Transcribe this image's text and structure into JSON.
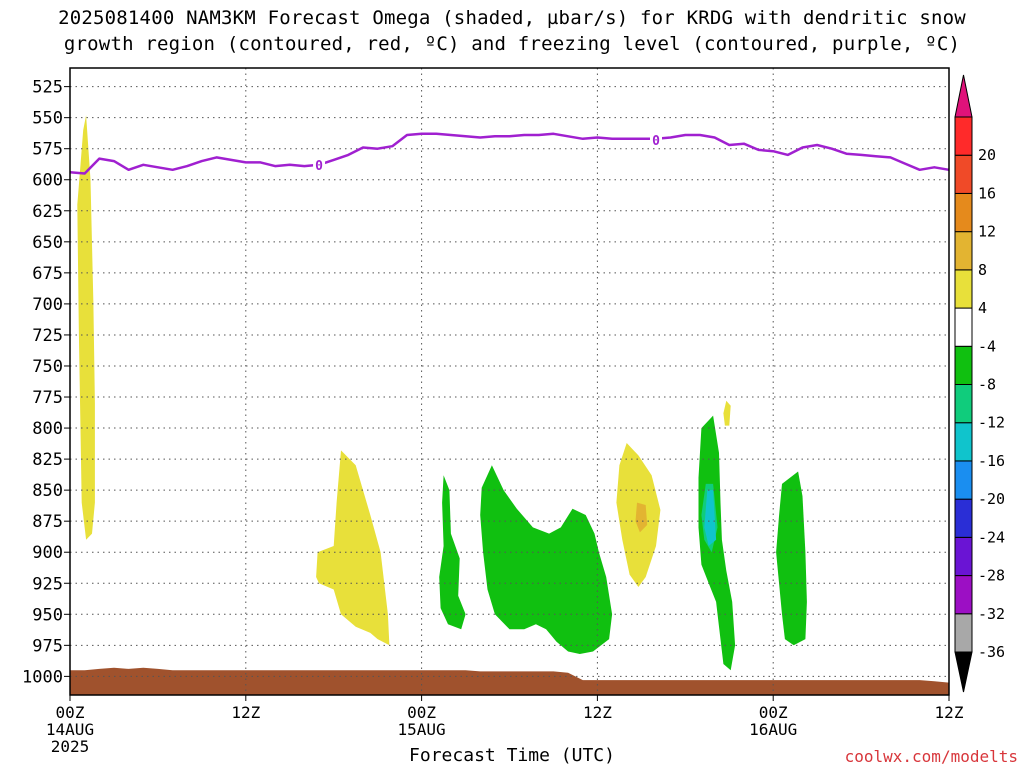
{
  "title": {
    "line1": "2025081400 NAM3KM Forecast Omega (shaded, µbar/s) for KRDG with dendritic snow",
    "line2": "growth region (contoured, red, ºC) and freezing level (contoured, purple, ºC)"
  },
  "xlabel": "Forecast Time (UTC)",
  "credit": "coolwx.com/modelts",
  "chart_data": {
    "type": "time-height contour",
    "y_axis": {
      "ticks": [
        525,
        550,
        575,
        600,
        625,
        650,
        675,
        700,
        725,
        750,
        775,
        800,
        825,
        850,
        875,
        900,
        925,
        950,
        975,
        1000
      ],
      "range": [
        1015,
        510
      ],
      "label": ""
    },
    "x_axis": {
      "range": [
        0,
        60
      ],
      "ticks": [
        {
          "h": 0,
          "line1": "00Z",
          "line2": "14AUG",
          "line3": "2025"
        },
        {
          "h": 12,
          "line1": "12Z",
          "line2": "",
          "line3": ""
        },
        {
          "h": 24,
          "line1": "00Z",
          "line2": "15AUG",
          "line3": ""
        },
        {
          "h": 36,
          "line1": "12Z",
          "line2": "",
          "line3": ""
        },
        {
          "h": 48,
          "line1": "00Z",
          "line2": "16AUG",
          "line3": ""
        },
        {
          "h": 60,
          "line1": "12Z",
          "line2": "",
          "line3": ""
        }
      ]
    },
    "grid": true,
    "colorbar": {
      "colors": [
        "#000000",
        "#a8a8a8",
        "#9c0fc4",
        "#6a14d4",
        "#2a2ed6",
        "#1a8ef0",
        "#10c4cc",
        "#10cc7c",
        "#10c010",
        "#ffffff",
        "#e8e03a",
        "#e3b431",
        "#e58a1c",
        "#f04a28",
        "#ff2a2a",
        "#e0127a"
      ],
      "labels": [
        "-36",
        "-32",
        "-28",
        "-24",
        "-20",
        "-16",
        "-12",
        "-8",
        "-4",
        "4",
        "8",
        "12",
        "16",
        "20"
      ]
    },
    "freezing_level": {
      "label": "0",
      "label_points": [
        [
          17,
          588
        ],
        [
          40,
          568
        ]
      ],
      "points": [
        [
          0,
          594
        ],
        [
          1,
          595
        ],
        [
          2,
          583
        ],
        [
          3,
          585
        ],
        [
          4,
          592
        ],
        [
          5,
          588
        ],
        [
          6,
          590
        ],
        [
          7,
          592
        ],
        [
          8,
          589
        ],
        [
          9,
          585
        ],
        [
          10,
          582
        ],
        [
          11,
          584
        ],
        [
          12,
          586
        ],
        [
          13,
          586
        ],
        [
          14,
          589
        ],
        [
          15,
          588
        ],
        [
          16,
          589
        ],
        [
          17,
          588
        ],
        [
          18,
          584
        ],
        [
          19,
          580
        ],
        [
          20,
          574
        ],
        [
          21,
          575
        ],
        [
          22,
          573
        ],
        [
          23,
          564
        ],
        [
          24,
          563
        ],
        [
          25,
          563
        ],
        [
          26,
          564
        ],
        [
          27,
          565
        ],
        [
          28,
          566
        ],
        [
          29,
          565
        ],
        [
          30,
          565
        ],
        [
          31,
          564
        ],
        [
          32,
          564
        ],
        [
          33,
          563
        ],
        [
          34,
          565
        ],
        [
          35,
          567
        ],
        [
          36,
          566
        ],
        [
          37,
          567
        ],
        [
          38,
          567
        ],
        [
          39,
          567
        ],
        [
          40,
          567
        ],
        [
          41,
          566
        ],
        [
          42,
          564
        ],
        [
          43,
          564
        ],
        [
          44,
          566
        ],
        [
          45,
          572
        ],
        [
          46,
          571
        ],
        [
          47,
          576
        ],
        [
          48,
          577
        ],
        [
          49,
          580
        ],
        [
          50,
          574
        ],
        [
          51,
          572
        ],
        [
          52,
          575
        ],
        [
          53,
          579
        ],
        [
          54,
          580
        ],
        [
          55,
          581
        ],
        [
          56,
          582
        ],
        [
          57,
          587
        ],
        [
          58,
          592
        ],
        [
          59,
          590
        ],
        [
          60,
          592
        ]
      ]
    },
    "omega_regions": [
      {
        "value": "4 to 8",
        "color": "#e8e03a",
        "points": [
          [
            0.7,
            590
          ],
          [
            0.9,
            560
          ],
          [
            1.1,
            548
          ],
          [
            1.4,
            600
          ],
          [
            1.6,
            700
          ],
          [
            1.7,
            780
          ],
          [
            1.7,
            860
          ],
          [
            1.5,
            885
          ],
          [
            1.1,
            890
          ],
          [
            0.8,
            860
          ],
          [
            0.6,
            720
          ],
          [
            0.5,
            620
          ]
        ]
      },
      {
        "value": "4 to 8",
        "color": "#e8e03a",
        "points": [
          [
            18.5,
            818
          ],
          [
            19.5,
            830
          ],
          [
            20.5,
            870
          ],
          [
            21.2,
            900
          ],
          [
            21.7,
            950
          ],
          [
            21.8,
            975
          ],
          [
            21.0,
            970
          ],
          [
            20.5,
            965
          ],
          [
            19.5,
            960
          ],
          [
            18.5,
            950
          ],
          [
            18.0,
            930
          ],
          [
            17.0,
            925
          ],
          [
            16.8,
            920
          ],
          [
            16.9,
            900
          ],
          [
            18.0,
            895
          ],
          [
            18.2,
            860
          ]
        ]
      },
      {
        "value": "4 to 8",
        "color": "#e8e03a",
        "points": [
          [
            38.0,
            812
          ],
          [
            38.8,
            822
          ],
          [
            39.7,
            838
          ],
          [
            40.3,
            866
          ],
          [
            40.0,
            895
          ],
          [
            39.3,
            920
          ],
          [
            38.8,
            928
          ],
          [
            38.2,
            918
          ],
          [
            37.7,
            890
          ],
          [
            37.3,
            860
          ],
          [
            37.5,
            830
          ]
        ]
      },
      {
        "value": "8 to 12",
        "color": "#e3b431",
        "points": [
          [
            38.7,
            860
          ],
          [
            39.3,
            862
          ],
          [
            39.4,
            878
          ],
          [
            38.9,
            884
          ],
          [
            38.6,
            875
          ]
        ]
      },
      {
        "value": "4 to 8",
        "color": "#e8e03a",
        "points": [
          [
            44.8,
            778
          ],
          [
            45.1,
            782
          ],
          [
            45.0,
            798
          ],
          [
            44.7,
            798
          ],
          [
            44.6,
            788
          ]
        ]
      },
      {
        "value": "-8 to -4",
        "color": "#10c010",
        "points": [
          [
            25.5,
            838
          ],
          [
            25.9,
            850
          ],
          [
            26.0,
            885
          ],
          [
            26.6,
            905
          ],
          [
            26.5,
            935
          ],
          [
            27.0,
            950
          ],
          [
            26.7,
            962
          ],
          [
            25.8,
            958
          ],
          [
            25.3,
            945
          ],
          [
            25.2,
            920
          ],
          [
            25.5,
            895
          ],
          [
            25.4,
            860
          ]
        ]
      },
      {
        "value": "-8 to -4",
        "color": "#10c010",
        "points": [
          [
            28.1,
            848
          ],
          [
            28.8,
            830
          ],
          [
            29.6,
            850
          ],
          [
            30.5,
            865
          ],
          [
            31.6,
            880
          ],
          [
            32.7,
            885
          ],
          [
            33.5,
            880
          ],
          [
            34.3,
            865
          ],
          [
            35.2,
            870
          ],
          [
            35.8,
            885
          ],
          [
            36.1,
            900
          ],
          [
            36.6,
            920
          ],
          [
            37.0,
            950
          ],
          [
            36.8,
            970
          ],
          [
            35.7,
            980
          ],
          [
            34.8,
            982
          ],
          [
            34.0,
            980
          ],
          [
            33.2,
            972
          ],
          [
            32.5,
            962
          ],
          [
            31.8,
            958
          ],
          [
            31.0,
            962
          ],
          [
            30.0,
            962
          ],
          [
            29.0,
            950
          ],
          [
            28.5,
            930
          ],
          [
            28.2,
            900
          ],
          [
            28.0,
            870
          ]
        ]
      },
      {
        "value": "-8 to -4",
        "color": "#10c010",
        "points": [
          [
            43.1,
            800
          ],
          [
            43.9,
            790
          ],
          [
            44.3,
            820
          ],
          [
            44.4,
            860
          ],
          [
            44.5,
            890
          ],
          [
            44.8,
            915
          ],
          [
            45.2,
            940
          ],
          [
            45.4,
            975
          ],
          [
            45.1,
            995
          ],
          [
            44.6,
            990
          ],
          [
            44.3,
            960
          ],
          [
            44.1,
            940
          ],
          [
            43.6,
            925
          ],
          [
            43.1,
            910
          ],
          [
            42.9,
            880
          ],
          [
            42.9,
            840
          ]
        ]
      },
      {
        "value": "-12 to -8",
        "color": "#10cc7c",
        "points": [
          [
            43.4,
            845
          ],
          [
            43.9,
            845
          ],
          [
            44.2,
            880
          ],
          [
            43.8,
            900
          ],
          [
            43.3,
            890
          ],
          [
            43.1,
            870
          ]
        ]
      },
      {
        "value": "-16 to -12",
        "color": "#10c4cc",
        "points": [
          [
            43.5,
            850
          ],
          [
            43.9,
            850
          ],
          [
            44.1,
            890
          ],
          [
            43.6,
            895
          ],
          [
            43.3,
            880
          ]
        ]
      },
      {
        "value": "-8 to -4",
        "color": "#10c010",
        "points": [
          [
            48.6,
            845
          ],
          [
            49.7,
            835
          ],
          [
            50.0,
            855
          ],
          [
            50.2,
            900
          ],
          [
            50.3,
            940
          ],
          [
            50.2,
            970
          ],
          [
            49.4,
            975
          ],
          [
            48.8,
            970
          ],
          [
            48.6,
            950
          ],
          [
            48.2,
            900
          ],
          [
            48.4,
            870
          ]
        ]
      }
    ],
    "terrain": {
      "color": "#a0522d",
      "points": [
        [
          0,
          995
        ],
        [
          1,
          995
        ],
        [
          2,
          994
        ],
        [
          3,
          993
        ],
        [
          4,
          994
        ],
        [
          5,
          993
        ],
        [
          6,
          994
        ],
        [
          7,
          995
        ],
        [
          8,
          995
        ],
        [
          9,
          995
        ],
        [
          10,
          995
        ],
        [
          11,
          995
        ],
        [
          12,
          995
        ],
        [
          13,
          995
        ],
        [
          14,
          995
        ],
        [
          15,
          995
        ],
        [
          16,
          995
        ],
        [
          17,
          995
        ],
        [
          18,
          995
        ],
        [
          19,
          995
        ],
        [
          20,
          995
        ],
        [
          21,
          995
        ],
        [
          22,
          995
        ],
        [
          23,
          995
        ],
        [
          24,
          995
        ],
        [
          25,
          995
        ],
        [
          26,
          995
        ],
        [
          27,
          995
        ],
        [
          28,
          996
        ],
        [
          29,
          996
        ],
        [
          30,
          996
        ],
        [
          31,
          996
        ],
        [
          32,
          996
        ],
        [
          33,
          996
        ],
        [
          34,
          997
        ],
        [
          35,
          1003
        ],
        [
          36,
          1003
        ],
        [
          37,
          1003
        ],
        [
          38,
          1003
        ],
        [
          39,
          1003
        ],
        [
          40,
          1003
        ],
        [
          41,
          1003
        ],
        [
          42,
          1003
        ],
        [
          43,
          1003
        ],
        [
          44,
          1003
        ],
        [
          45,
          1003
        ],
        [
          46,
          1003
        ],
        [
          47,
          1003
        ],
        [
          48,
          1003
        ],
        [
          49,
          1003
        ],
        [
          50,
          1003
        ],
        [
          51,
          1003
        ],
        [
          52,
          1003
        ],
        [
          53,
          1003
        ],
        [
          54,
          1003
        ],
        [
          55,
          1003
        ],
        [
          56,
          1003
        ],
        [
          57,
          1003
        ],
        [
          58,
          1003
        ],
        [
          59,
          1004
        ],
        [
          60,
          1005
        ]
      ]
    }
  }
}
